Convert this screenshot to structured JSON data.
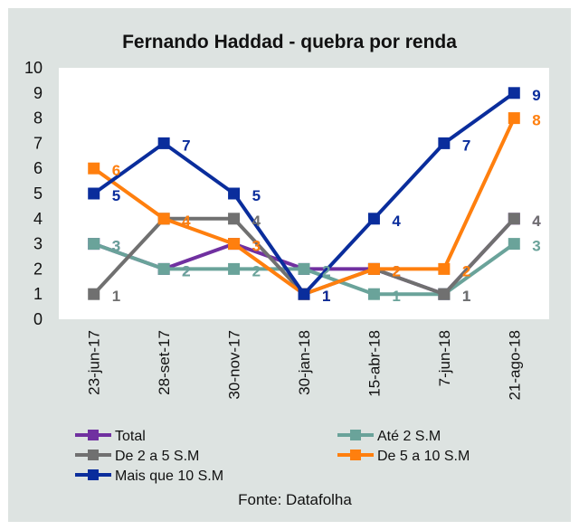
{
  "chart_data": {
    "type": "line",
    "title": "Fernando Haddad - quebra por renda",
    "source": "Fonte: Datafolha",
    "categories": [
      "23-jun-17",
      "28-set-17",
      "30-nov-17",
      "30-jan-18",
      "15-abr-18",
      "7-jun-18",
      "21-ago-18"
    ],
    "ylim": [
      0,
      10
    ],
    "yticks": [
      0,
      1,
      2,
      3,
      4,
      5,
      6,
      7,
      8,
      9,
      10
    ],
    "grid": false,
    "legend_position": "bottom",
    "series": [
      {
        "name": "Total",
        "color": "#7030a0",
        "values": [
          3,
          2,
          3,
          2,
          2,
          1,
          4
        ],
        "labels": [
          "3",
          "2",
          "3",
          "2",
          "2",
          "1",
          "4"
        ]
      },
      {
        "name": "Até 2 S.M",
        "color": "#6aa39a",
        "values": [
          3,
          2,
          2,
          2,
          1,
          1,
          3
        ],
        "labels": [
          "3",
          "2",
          "2",
          "2",
          "1",
          "1",
          "3"
        ]
      },
      {
        "name": "De 2 a 5 S.M",
        "color": "#707070",
        "values": [
          1,
          4,
          4,
          1,
          2,
          1,
          4
        ],
        "labels": [
          "1",
          "4",
          "4",
          "1",
          "2",
          "1",
          "4"
        ]
      },
      {
        "name": "De 5 a 10 S.M",
        "color": "#ff7f0e",
        "values": [
          6,
          4,
          3,
          1,
          2,
          2,
          8
        ],
        "labels": [
          "6",
          "4",
          "3",
          "1",
          "2",
          "2",
          "8"
        ]
      },
      {
        "name": "Mais que 10 S.M",
        "color": "#0a2d9c",
        "values": [
          5,
          7,
          5,
          1,
          4,
          7,
          9
        ],
        "labels": [
          "5",
          "7",
          "5",
          "1",
          "4",
          "7",
          "9"
        ]
      }
    ]
  }
}
